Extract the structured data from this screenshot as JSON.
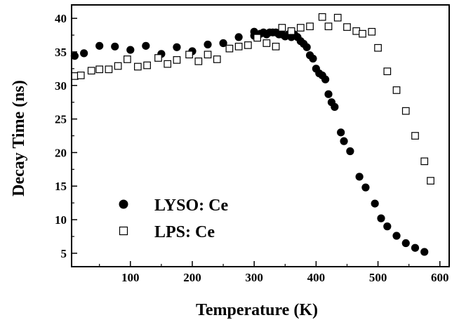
{
  "chart_data": {
    "type": "scatter",
    "xlabel": "Temperature (K)",
    "ylabel": "Decay Time (ns)",
    "xlim": [
      5,
      615
    ],
    "ylim": [
      3,
      42
    ],
    "x_ticks": [
      100,
      200,
      300,
      400,
      500,
      600
    ],
    "y_ticks": [
      5,
      10,
      15,
      20,
      25,
      30,
      35,
      40
    ],
    "grid": false,
    "legend_position": "bottom-left",
    "series": [
      {
        "name": "LYSO: Ce",
        "marker": "filled-circle",
        "color": "#000000",
        "points": [
          [
            10,
            34.4
          ],
          [
            25,
            34.8
          ],
          [
            50,
            35.9
          ],
          [
            75,
            35.8
          ],
          [
            100,
            35.3
          ],
          [
            125,
            35.9
          ],
          [
            150,
            34.7
          ],
          [
            175,
            35.7
          ],
          [
            200,
            35.1
          ],
          [
            225,
            36.1
          ],
          [
            250,
            36.3
          ],
          [
            275,
            37.2
          ],
          [
            300,
            38.0
          ],
          [
            300,
            37.4
          ],
          [
            310,
            37.7
          ],
          [
            315,
            37.9
          ],
          [
            320,
            37.6
          ],
          [
            325,
            37.9
          ],
          [
            330,
            37.9
          ],
          [
            335,
            37.9
          ],
          [
            340,
            37.6
          ],
          [
            345,
            37.6
          ],
          [
            350,
            37.3
          ],
          [
            355,
            37.6
          ],
          [
            360,
            37.2
          ],
          [
            365,
            37.6
          ],
          [
            370,
            37.2
          ],
          [
            375,
            36.6
          ],
          [
            380,
            36.2
          ],
          [
            385,
            35.7
          ],
          [
            390,
            34.5
          ],
          [
            395,
            34.0
          ],
          [
            400,
            32.5
          ],
          [
            405,
            31.8
          ],
          [
            410,
            31.5
          ],
          [
            415,
            30.9
          ],
          [
            420,
            28.7
          ],
          [
            425,
            27.5
          ],
          [
            430,
            26.8
          ],
          [
            440,
            23.0
          ],
          [
            445,
            21.7
          ],
          [
            455,
            20.2
          ],
          [
            470,
            16.4
          ],
          [
            480,
            14.8
          ],
          [
            495,
            12.4
          ],
          [
            505,
            10.2
          ],
          [
            515,
            9.0
          ],
          [
            530,
            7.6
          ],
          [
            545,
            6.5
          ],
          [
            560,
            5.8
          ],
          [
            575,
            5.2
          ]
        ]
      },
      {
        "name": "LPS: Ce",
        "marker": "open-square",
        "color": "#000000",
        "points": [
          [
            10,
            31.4
          ],
          [
            20,
            31.5
          ],
          [
            37,
            32.2
          ],
          [
            50,
            32.4
          ],
          [
            65,
            32.4
          ],
          [
            80,
            32.9
          ],
          [
            95,
            33.9
          ],
          [
            112,
            32.8
          ],
          [
            127,
            33.0
          ],
          [
            145,
            34.1
          ],
          [
            160,
            33.2
          ],
          [
            175,
            33.8
          ],
          [
            195,
            34.6
          ],
          [
            210,
            33.6
          ],
          [
            225,
            34.6
          ],
          [
            240,
            33.9
          ],
          [
            260,
            35.5
          ],
          [
            275,
            35.8
          ],
          [
            290,
            36.0
          ],
          [
            305,
            37.1
          ],
          [
            320,
            36.3
          ],
          [
            335,
            35.8
          ],
          [
            345,
            38.6
          ],
          [
            360,
            38.1
          ],
          [
            375,
            38.6
          ],
          [
            390,
            38.8
          ],
          [
            410,
            40.2
          ],
          [
            420,
            38.8
          ],
          [
            435,
            40.1
          ],
          [
            450,
            38.7
          ],
          [
            465,
            38.1
          ],
          [
            475,
            37.7
          ],
          [
            490,
            38.0
          ],
          [
            500,
            35.6
          ],
          [
            515,
            32.1
          ],
          [
            530,
            29.3
          ],
          [
            545,
            26.2
          ],
          [
            560,
            22.5
          ],
          [
            575,
            18.7
          ],
          [
            585,
            15.8
          ]
        ]
      }
    ]
  }
}
